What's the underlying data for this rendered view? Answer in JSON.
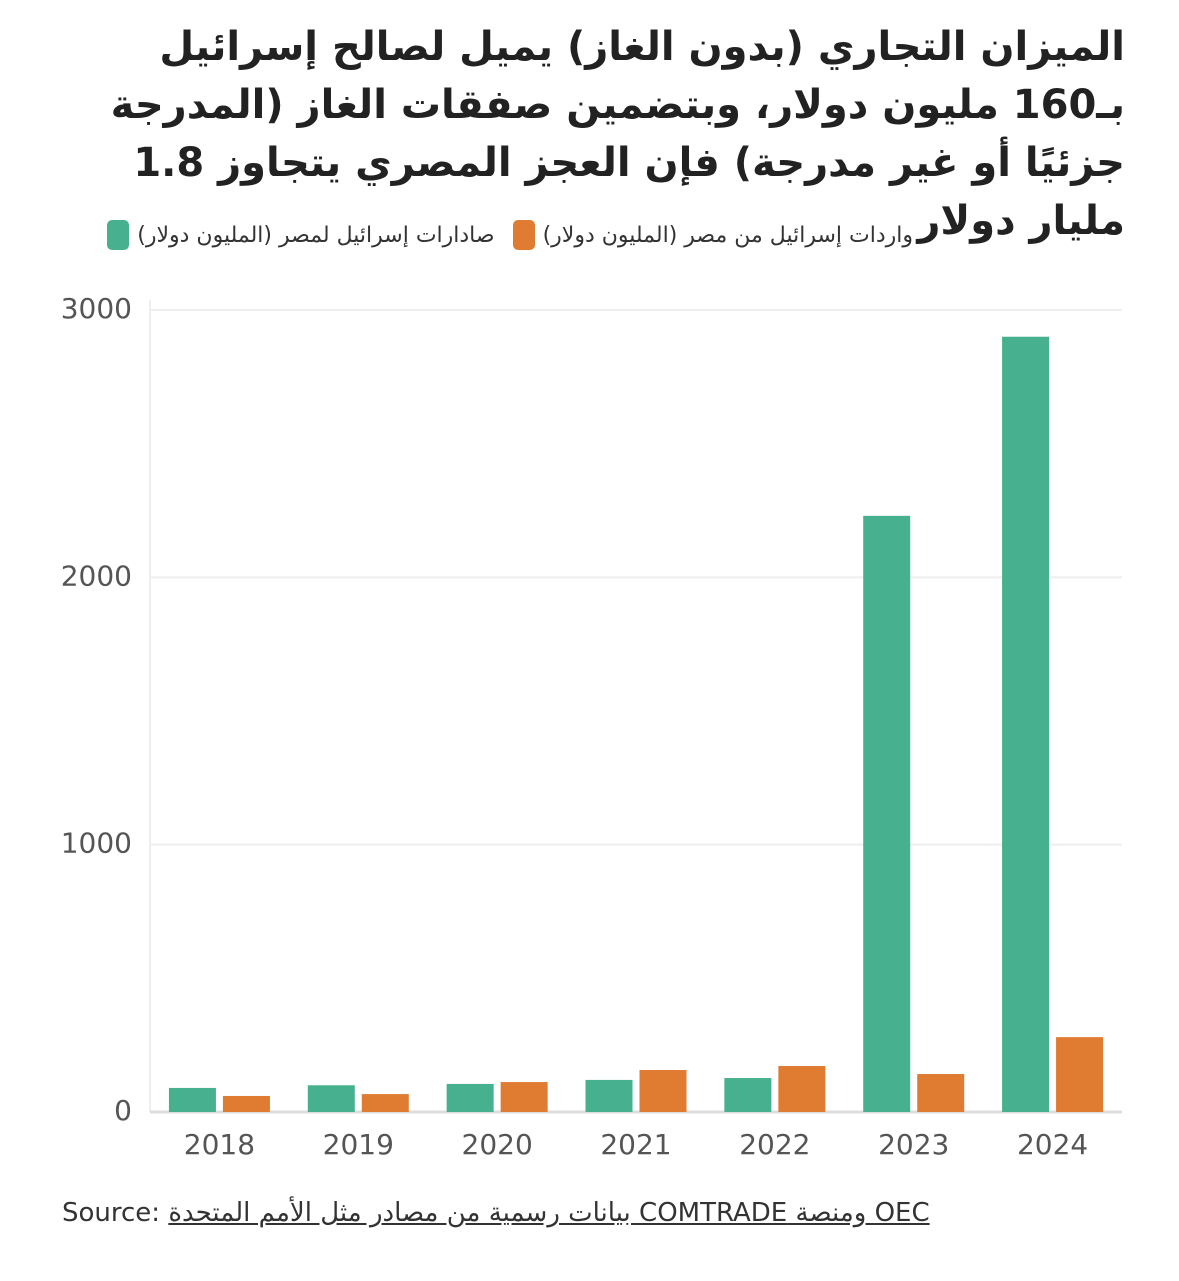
{
  "chart_data": {
    "type": "bar",
    "title": "الميزان التجاري (بدون الغاز) يميل لصالح إسرائيل بـ160 مليون دولار، وبتضمين صفقات الغاز (المدرجة جزئيًا أو غير مدرجة) فإن العجز المصري يتجاوز 1.8 مليار دولار",
    "categories": [
      "2018",
      "2019",
      "2020",
      "2021",
      "2022",
      "2023",
      "2024"
    ],
    "series": [
      {
        "name": "صادارات إسرائيل لمصر (المليون دولار)",
        "color": "#47b08f",
        "values": [
          90,
          100,
          105,
          120,
          127,
          2230,
          2900
        ]
      },
      {
        "name": "واردات إسرائيل من مصر (المليون دولار)",
        "color": "#e07b32",
        "values": [
          60,
          67,
          112,
          157,
          172,
          142,
          280
        ]
      }
    ],
    "ylim": [
      0,
      3000
    ],
    "yticks": [
      0,
      1000,
      2000,
      3000
    ],
    "grid": true,
    "source_label": "Source:",
    "source": "OEC ومنصة COMTRADE بيانات رسمية من مصادر مثل الأمم المتحدة"
  }
}
